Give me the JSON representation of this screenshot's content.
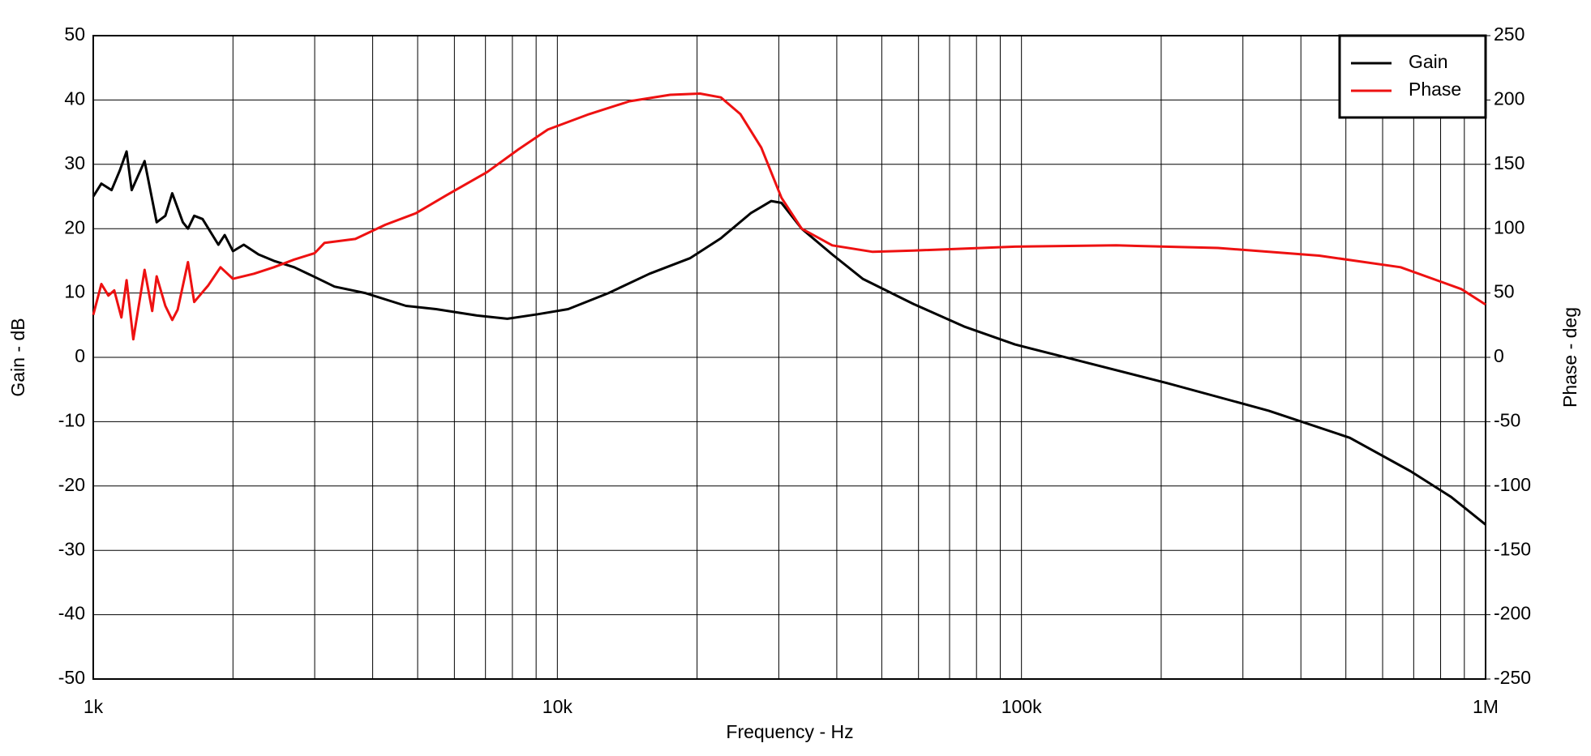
{
  "chart_data": {
    "type": "line",
    "xlabel": "Frequency - Hz",
    "ylabel": "Gain - dB",
    "y2label": "Phase - deg",
    "xscale": "log",
    "grid": true,
    "legend": "upper right",
    "xlim": [
      1000,
      1000000
    ],
    "xticks": [
      {
        "value": 1000,
        "label": "1k"
      },
      {
        "value": 10000,
        "label": "10k"
      },
      {
        "value": 100000,
        "label": "100k"
      },
      {
        "value": 1000000,
        "label": "1M"
      }
    ],
    "ylim": [
      -50,
      50
    ],
    "yticks": [
      -50,
      -40,
      -30,
      -20,
      -10,
      0,
      10,
      20,
      30,
      40,
      50
    ],
    "y2lim": [
      -250,
      250
    ],
    "y2ticks": [
      -250,
      -200,
      -150,
      -100,
      -50,
      0,
      50,
      100,
      150,
      200,
      250
    ],
    "series": [
      {
        "name": "Gain",
        "color": "#000000",
        "axis": "y",
        "x": [
          1000,
          1041,
          1095,
          1140,
          1180,
          1210,
          1290,
          1370,
          1430,
          1480,
          1560,
          1600,
          1650,
          1720,
          1860,
          1920,
          2000,
          2110,
          2270,
          2450,
          2710,
          3000,
          3310,
          3850,
          4720,
          5480,
          6710,
          7800,
          9070,
          10550,
          12900,
          15800,
          19300,
          22500,
          26100,
          28900,
          30400,
          33600,
          39100,
          45500,
          58500,
          75200,
          96800,
          131000,
          206000,
          341000,
          510000,
          689000,
          843000,
          1000000
        ],
        "values": [
          25,
          27,
          26,
          29,
          32,
          26,
          30.5,
          21,
          22,
          25.5,
          21,
          20,
          22,
          21.5,
          17.5,
          19,
          16.5,
          17.5,
          16,
          15,
          14,
          12.5,
          11,
          10,
          8,
          7.5,
          6.5,
          6,
          6.7,
          7.5,
          10,
          13,
          15.4,
          18.5,
          22.4,
          24.3,
          24,
          20,
          16,
          12.2,
          8.3,
          4.8,
          2,
          -0.4,
          -4,
          -8.3,
          -12.5,
          -17.7,
          -21.7,
          -26
        ]
      },
      {
        "name": "Phase",
        "color": "#ee1111",
        "axis": "y2",
        "x": [
          1000,
          1041,
          1078,
          1110,
          1150,
          1180,
          1220,
          1290,
          1340,
          1370,
          1430,
          1480,
          1520,
          1600,
          1650,
          1770,
          1880,
          2000,
          2220,
          2450,
          2710,
          3000,
          3150,
          3670,
          4260,
          4960,
          5770,
          7060,
          8200,
          9540,
          11700,
          14300,
          17500,
          20300,
          22500,
          24800,
          27500,
          30400,
          33600,
          39100,
          47800,
          58500,
          96800,
          160000,
          265000,
          438000,
          656000,
          887000,
          1000000
        ],
        "values": [
          33,
          57,
          48,
          52,
          31,
          60,
          14,
          68,
          36,
          63,
          40,
          29,
          37,
          74,
          43,
          56,
          70,
          61,
          65,
          70,
          76,
          81,
          89,
          92,
          103,
          112,
          126,
          144,
          161,
          177,
          189,
          199,
          204,
          205,
          202,
          189,
          163,
          124,
          100,
          87,
          82,
          83,
          86,
          87,
          85,
          79,
          70,
          53,
          41
        ]
      }
    ]
  }
}
